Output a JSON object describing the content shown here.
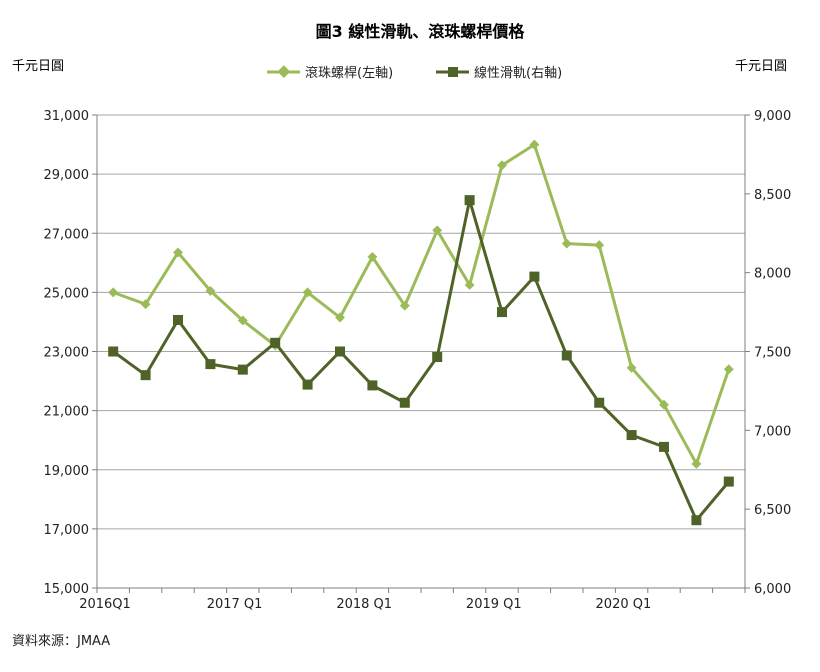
{
  "chart_data": {
    "type": "line",
    "title": "圖3 線性滑軌、滾珠螺桿價格",
    "left_unit": "千元日圓",
    "right_unit": "千元日圓",
    "source": "資料來源：JMAA",
    "x": [
      "2016Q1",
      "2016Q2",
      "2016Q3",
      "2016Q4",
      "2017Q1",
      "2017Q2",
      "2017Q3",
      "2017Q4",
      "2018Q1",
      "2018Q2",
      "2018Q3",
      "2018Q4",
      "2019Q1",
      "2019Q2",
      "2019Q3",
      "2019Q4",
      "2020Q1",
      "2020Q2",
      "2020Q3",
      "2020Q4"
    ],
    "x_tick_labels": [
      {
        "index": 0,
        "label": "2016Q1"
      },
      {
        "index": 4,
        "label": "2017 Q1"
      },
      {
        "index": 8,
        "label": "2018 Q1"
      },
      {
        "index": 12,
        "label": "2019 Q1"
      },
      {
        "index": 16,
        "label": "2020 Q1"
      }
    ],
    "left_axis": {
      "min": 15000,
      "max": 31000,
      "ticks": [
        {
          "v": 15000,
          "t": "15,000"
        },
        {
          "v": 17000,
          "t": "17,000"
        },
        {
          "v": 19000,
          "t": "19,000"
        },
        {
          "v": 21000,
          "t": "21,000"
        },
        {
          "v": 23000,
          "t": "23,000"
        },
        {
          "v": 25000,
          "t": "25,000"
        },
        {
          "v": 27000,
          "t": "27,000"
        },
        {
          "v": 29000,
          "t": "29,000"
        },
        {
          "v": 31000,
          "t": "31,000"
        }
      ]
    },
    "right_axis": {
      "min": 6000,
      "max": 9000,
      "ticks": [
        {
          "v": 6000,
          "t": "6,000"
        },
        {
          "v": 6500,
          "t": "6,500"
        },
        {
          "v": 7000,
          "t": "7,000"
        },
        {
          "v": 7500,
          "t": "7,500"
        },
        {
          "v": 8000,
          "t": "8,000"
        },
        {
          "v": 8500,
          "t": "8,500"
        },
        {
          "v": 9000,
          "t": "9,000"
        }
      ]
    },
    "grid": true,
    "legend_position": "top-center",
    "series": [
      {
        "name": "滾珠螺桿(左軸)",
        "axis": "left",
        "color": "#9bbb59",
        "marker": "diamond",
        "values": [
          25000,
          24600,
          26350,
          25050,
          24050,
          23200,
          25000,
          24150,
          26200,
          24550,
          27100,
          25250,
          29300,
          30000,
          26650,
          26600,
          22450,
          21200,
          19200,
          22400
        ]
      },
      {
        "name": "線性滑軌(右軸)",
        "axis": "right",
        "color": "#4f6228",
        "marker": "square",
        "values": [
          7500,
          7350,
          7700,
          7420,
          7385,
          7555,
          7290,
          7500,
          7285,
          7175,
          7465,
          8460,
          7750,
          7975,
          7475,
          7175,
          6970,
          6895,
          6430,
          6675
        ]
      }
    ]
  }
}
